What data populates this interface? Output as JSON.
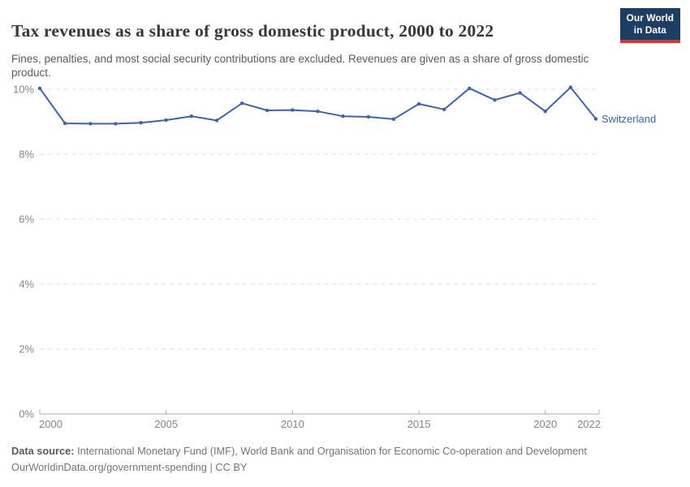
{
  "header": {
    "title": "Tax revenues as a share of gross domestic product, 2000 to 2022",
    "subtitle": "Fines, penalties, and most social security contributions are excluded. Revenues are given as a share of gross domestic product.",
    "logo_line1": "Our World",
    "logo_line2": "in Data"
  },
  "chart_data": {
    "type": "line",
    "title": "Tax revenues as a share of gross domestic product, 2000 to 2022",
    "xlabel": "",
    "ylabel": "",
    "xlim": [
      2000,
      2022
    ],
    "ylim": [
      0,
      10.5
    ],
    "grid": "horizontal-dashed",
    "legend_position": "end-of-line-label",
    "x_ticks": [
      2000,
      2005,
      2010,
      2015,
      2020,
      2022
    ],
    "y_ticks": [
      0,
      2,
      4,
      6,
      8,
      10
    ],
    "y_tick_suffix": "%",
    "x": [
      2000,
      2001,
      2002,
      2003,
      2004,
      2005,
      2006,
      2007,
      2008,
      2009,
      2010,
      2011,
      2012,
      2013,
      2014,
      2015,
      2016,
      2017,
      2018,
      2019,
      2020,
      2021,
      2022
    ],
    "series": [
      {
        "name": "Switzerland",
        "color": "#4063a8",
        "values": [
          10.03,
          8.95,
          8.94,
          8.94,
          8.97,
          9.05,
          9.17,
          9.04,
          9.57,
          9.35,
          9.36,
          9.32,
          9.17,
          9.15,
          9.08,
          9.55,
          9.38,
          10.03,
          9.67,
          9.89,
          9.32,
          10.06,
          9.09
        ]
      }
    ]
  },
  "footer": {
    "datasource_label": "Data source:",
    "datasource_text": " International Monetary Fund (IMF), World Bank and Organisation for Economic Co-operation and Development",
    "link_line": "OurWorldinData.org/government-spending | CC BY"
  },
  "colors": {
    "line": "#4063a8",
    "grid": "#dddddd",
    "axis": "#a9a9a9",
    "tick": "#b5b5b5",
    "tick_text": "#858585",
    "title_text": "#383838",
    "subtitle_text": "#5b5b5b",
    "footer_text": "#757575",
    "logo_bg": "#1d3d63",
    "logo_red": "#dc352b"
  }
}
